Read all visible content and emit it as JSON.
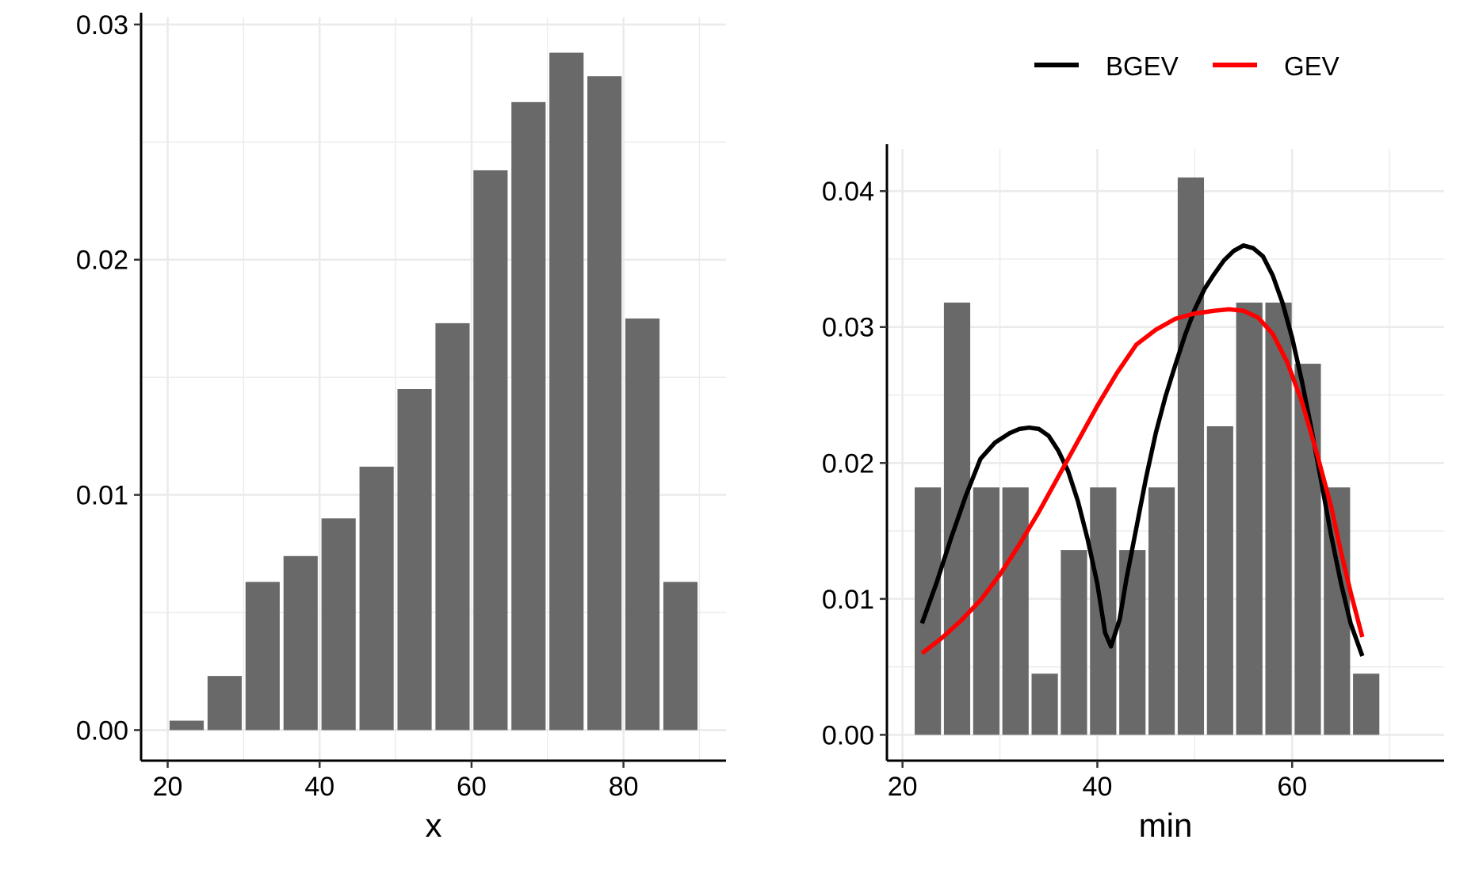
{
  "chart_data": [
    {
      "type": "bar",
      "xlabel": "x",
      "ylabel": "",
      "xlim": [
        16.5,
        93.5
      ],
      "ylim": [
        -0.0013,
        0.0303
      ],
      "x_ticks": [
        20,
        40,
        60,
        80
      ],
      "x_tick_labels": [
        "20",
        "40",
        "60",
        "80"
      ],
      "y_ticks": [
        0.0,
        0.01,
        0.02,
        0.03
      ],
      "y_tick_labels": [
        "0.00",
        "0.01",
        "0.02",
        "0.03"
      ],
      "grid": true,
      "bin_width": 5,
      "bin_centers": [
        22.5,
        27.5,
        32.5,
        37.5,
        42.5,
        47.5,
        52.5,
        57.5,
        62.5,
        67.5,
        72.5,
        77.5,
        82.5,
        87.5
      ],
      "values": [
        0.0004,
        0.0023,
        0.0063,
        0.0074,
        0.009,
        0.0112,
        0.0145,
        0.0173,
        0.0238,
        0.0267,
        0.0288,
        0.0278,
        0.0175,
        0.0063
      ],
      "bar_color": "#696969"
    },
    {
      "type": "bar",
      "xlabel": "min",
      "ylabel": "",
      "xlim": [
        18.4,
        75.6
      ],
      "ylim": [
        -0.0019,
        0.0431
      ],
      "x_ticks": [
        20,
        40,
        60
      ],
      "x_tick_labels": [
        "20",
        "40",
        "60"
      ],
      "y_ticks": [
        0.0,
        0.01,
        0.02,
        0.03,
        0.04
      ],
      "y_tick_labels": [
        "0.00",
        "0.01",
        "0.02",
        "0.03",
        "0.04"
      ],
      "grid": true,
      "bin_width": 3,
      "bin_centers": [
        22.6,
        25.6,
        28.6,
        31.6,
        34.6,
        37.6,
        40.6,
        43.6,
        46.6,
        49.6,
        52.6,
        55.6,
        58.6,
        61.6,
        64.6,
        67.6
      ],
      "values": [
        0.0182,
        0.0318,
        0.0182,
        0.0182,
        0.0045,
        0.0136,
        0.0182,
        0.0136,
        0.0182,
        0.041,
        0.0227,
        0.0318,
        0.0318,
        0.0273,
        0.0182,
        0.0045
      ],
      "bar_color": "#696969",
      "legend": {
        "position": "top",
        "entries": [
          "BGEV",
          "GEV"
        ]
      },
      "series": [
        {
          "name": "BGEV",
          "color": "#000000",
          "x": [
            22.0,
            23.5,
            25.0,
            26.5,
            28.0,
            29.5,
            31.0,
            32.0,
            33.0,
            34.0,
            35.0,
            36.0,
            37.0,
            38.0,
            39.0,
            40.0,
            40.8,
            41.4,
            42.3,
            43.0,
            44.0,
            45.0,
            46.0,
            47.0,
            48.0,
            49.0,
            50.0,
            51.0,
            52.0,
            53.0,
            54.0,
            55.0,
            56.0,
            57.0,
            58.0,
            59.0,
            60.0,
            61.0,
            62.0,
            63.0,
            64.0,
            65.0,
            66.0,
            67.2
          ],
          "y": [
            0.0082,
            0.0112,
            0.0145,
            0.0176,
            0.0203,
            0.0215,
            0.0222,
            0.0225,
            0.0226,
            0.0225,
            0.022,
            0.0209,
            0.0194,
            0.0172,
            0.0144,
            0.0111,
            0.0075,
            0.0065,
            0.0085,
            0.0115,
            0.0152,
            0.0189,
            0.0222,
            0.0249,
            0.0272,
            0.0294,
            0.0313,
            0.0328,
            0.0339,
            0.0349,
            0.0356,
            0.036,
            0.0358,
            0.0352,
            0.0338,
            0.0318,
            0.0292,
            0.026,
            0.0224,
            0.0186,
            0.0147,
            0.0112,
            0.0082,
            0.0058
          ]
        },
        {
          "name": "GEV",
          "color": "#ff0000",
          "x": [
            22.0,
            24.0,
            26.0,
            28.0,
            30.0,
            32.0,
            34.0,
            36.0,
            38.0,
            40.0,
            42.0,
            44.0,
            46.0,
            48.0,
            50.0,
            52.0,
            53.5,
            55.0,
            56.5,
            58.0,
            59.5,
            61.0,
            62.5,
            64.0,
            65.0,
            66.0,
            67.2
          ],
          "y": [
            0.006,
            0.0071,
            0.0084,
            0.0099,
            0.0118,
            0.014,
            0.0164,
            0.019,
            0.0216,
            0.0242,
            0.0266,
            0.0287,
            0.0298,
            0.0306,
            0.031,
            0.0312,
            0.0313,
            0.0312,
            0.0307,
            0.0295,
            0.0274,
            0.0245,
            0.0208,
            0.0168,
            0.0135,
            0.0105,
            0.0072
          ]
        }
      ]
    }
  ]
}
